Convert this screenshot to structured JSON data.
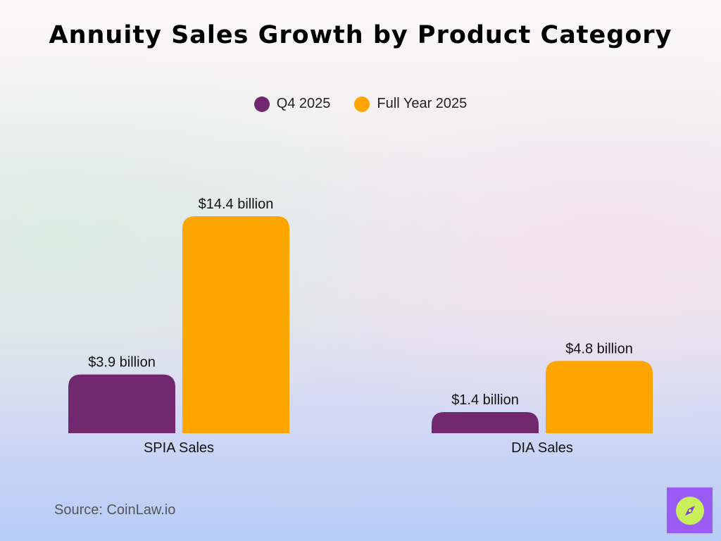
{
  "title": "Annuity Sales Growth by Product Category",
  "source": "Source: CoinLaw.io",
  "brand": {
    "icon": "compass-icon",
    "bg_color": "#9b5cf6",
    "circle_color": "#c9f05a"
  },
  "chart_data": {
    "type": "bar",
    "categories": [
      "SPIA Sales",
      "DIA Sales"
    ],
    "series": [
      {
        "name": "Q4 2025",
        "color": "#72286e",
        "values": [
          3.9,
          1.4
        ],
        "labels": [
          "$3.9 billion",
          "$1.4 billion"
        ]
      },
      {
        "name": "Full Year 2025",
        "color": "#ffa500",
        "values": [
          14.4,
          4.8
        ],
        "labels": [
          "$14.4 billion",
          "$4.8 billion"
        ]
      }
    ],
    "unit": "billion USD",
    "ylim": [
      0,
      14.4
    ],
    "grid": false,
    "legend_position": "top-center"
  }
}
